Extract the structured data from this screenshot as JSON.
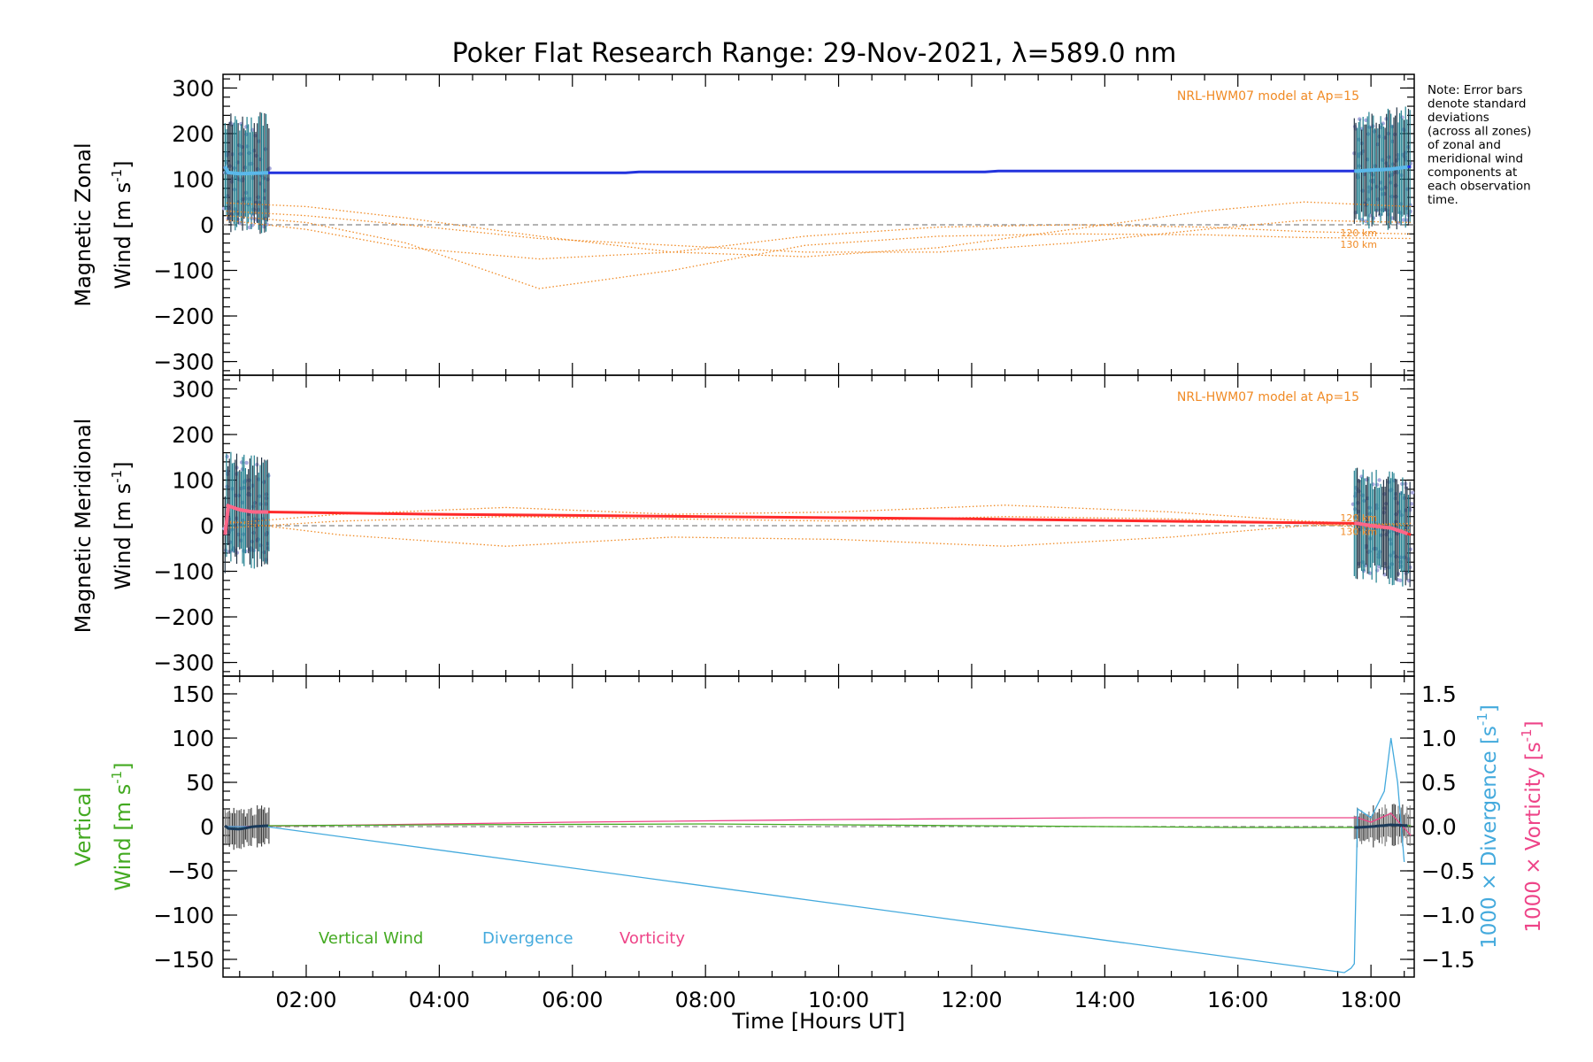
{
  "title": "Poker Flat Research Range: 29-Nov-2021, λ=589.0 nm",
  "note": [
    "Note: Error bars",
    "denote standard",
    "deviations",
    "(across all zones)",
    "of zonal and",
    "meridional wind",
    "components at",
    "each observation",
    "time."
  ],
  "colors": {
    "zonal": "#2233dd",
    "zonal_light": "#5ab8ea",
    "meridional": "#ff2a2a",
    "meridional_light": "#ff6688",
    "model": "#f08a24",
    "spread": "#aaaadd",
    "vertical": "#44aa22",
    "divergence": "#44aadd",
    "vorticity": "#ee4488",
    "errbar": "#223344"
  },
  "chart_data": [
    {
      "type": "line",
      "panel": "zonal",
      "ylabel_line1": "Magnetic Zonal",
      "ylabel_line2": "Wind [m s-1]",
      "ylabel_unit": "[m s",
      "ylabel_exp": "-1",
      "ylabel_close": "]",
      "ylabel_prefix": "Wind ",
      "ylim": [
        -330,
        330
      ],
      "yticks": [
        300,
        200,
        100,
        0,
        -100,
        -200,
        -300
      ],
      "ytick_labels": [
        "300",
        "200",
        "100",
        "0",
        "−100",
        "−200",
        "−300"
      ],
      "model_label": "NRL-HWM07 model at Ap=15",
      "model_alt_labels": [
        "120 km",
        "130 km"
      ],
      "series": [
        {
          "name": "measured",
          "x": [
            0.8,
            1.0,
            1.2,
            1.4,
            4.0,
            6.8,
            7.0,
            12.2,
            12.4,
            17.8,
            18.0,
            18.3,
            18.6
          ],
          "y": [
            115,
            112,
            113,
            114,
            114,
            114,
            116,
            116,
            118,
            118,
            120,
            122,
            128
          ]
        },
        {
          "name": "model_1",
          "x": [
            0.8,
            2.0,
            3.5,
            5.5,
            7.5,
            9.5,
            11.5,
            13.5,
            15.5,
            17.0,
            18.6
          ],
          "y": [
            48,
            40,
            15,
            -25,
            -60,
            -70,
            -50,
            -10,
            30,
            50,
            40
          ]
        },
        {
          "name": "model_2",
          "x": [
            0.8,
            2.0,
            3.5,
            5.5,
            7.5,
            9.5,
            11.5,
            13.5,
            15.5,
            17.0,
            18.6
          ],
          "y": [
            20,
            5,
            -40,
            -140,
            -100,
            -45,
            -25,
            -20,
            -22,
            -28,
            -30
          ]
        },
        {
          "name": "model_3",
          "x": [
            0.8,
            2.0,
            3.5,
            5.5,
            7.5,
            9.5,
            11.5,
            13.5,
            15.5,
            17.0,
            18.6
          ],
          "y": [
            10,
            -10,
            -50,
            -75,
            -60,
            -25,
            -5,
            0,
            -5,
            -15,
            -20
          ]
        },
        {
          "name": "model_4",
          "x": [
            0.8,
            2.0,
            3.5,
            5.5,
            7.5,
            9.5,
            11.5,
            13.5,
            15.5,
            17.0,
            18.6
          ],
          "y": [
            30,
            20,
            0,
            -30,
            -45,
            -60,
            -60,
            -40,
            -10,
            10,
            5
          ]
        }
      ]
    },
    {
      "type": "line",
      "panel": "meridional",
      "ylabel_line1": "Magnetic Meridional",
      "ylabel_line2": "Wind [m s-1]",
      "ylabel_unit": "[m s",
      "ylabel_exp": "-1",
      "ylabel_close": "]",
      "ylabel_prefix": "Wind ",
      "ylim": [
        -330,
        330
      ],
      "yticks": [
        300,
        200,
        100,
        0,
        -100,
        -200,
        -300
      ],
      "ytick_labels": [
        "300",
        "200",
        "100",
        "0",
        "−100",
        "−200",
        "−300"
      ],
      "model_label": "NRL-HWM07 model at Ap=15",
      "model_alt_labels": [
        "120 km",
        "130 km"
      ],
      "series": [
        {
          "name": "measured",
          "x": [
            0.8,
            1.0,
            1.2,
            1.4,
            4.0,
            8.0,
            12.0,
            16.0,
            17.8,
            18.0,
            18.3,
            18.6
          ],
          "y": [
            45,
            35,
            30,
            30,
            25,
            20,
            15,
            8,
            5,
            0,
            -5,
            -20
          ]
        },
        {
          "name": "model_1",
          "x": [
            0.8,
            2.5,
            5.0,
            7.5,
            10.0,
            12.5,
            15.0,
            17.0,
            18.6
          ],
          "y": [
            5,
            25,
            40,
            25,
            30,
            45,
            30,
            10,
            0
          ]
        },
        {
          "name": "model_2",
          "x": [
            0.8,
            2.5,
            5.0,
            7.5,
            10.0,
            12.5,
            15.0,
            17.0,
            18.6
          ],
          "y": [
            10,
            -20,
            -45,
            -25,
            -30,
            -45,
            -25,
            0,
            5
          ]
        },
        {
          "name": "model_3",
          "x": [
            0.8,
            2.5,
            5.0,
            7.5,
            10.0,
            12.5,
            15.0,
            17.0,
            18.6
          ],
          "y": [
            -5,
            10,
            20,
            15,
            10,
            20,
            15,
            5,
            -10
          ]
        }
      ]
    },
    {
      "type": "line",
      "panel": "vertical",
      "ylabel_line1": "Vertical",
      "ylabel_line2": "Wind [m s-1]",
      "ylabel_unit": "[m s",
      "ylabel_exp": "-1",
      "ylabel_close": "]",
      "ylabel_prefix": "Wind ",
      "ylim": [
        -170,
        170
      ],
      "yticks": [
        150,
        100,
        50,
        0,
        -50,
        -100,
        -150
      ],
      "ytick_labels": [
        "150",
        "100",
        "50",
        "0",
        "−50",
        "−100",
        "−150"
      ],
      "y2lim": [
        -1.7,
        1.7
      ],
      "y2ticks": [
        1.5,
        1.0,
        0.5,
        0.0,
        -0.5,
        -1.0,
        -1.5
      ],
      "y2tick_labels": [
        "1.5",
        "1.0",
        "0.5",
        "0.0",
        "−0.5",
        "−1.0",
        "−1.5"
      ],
      "y2label_div": "1000 × Divergence [s",
      "y2label_vor": "1000 × Vorticity [s",
      "y2label_exp": "-1",
      "y2label_close": "]",
      "xlabel": "Time [Hours UT]",
      "xlim": [
        0.75,
        18.65
      ],
      "xticks": [
        2,
        4,
        6,
        8,
        10,
        12,
        14,
        16,
        18
      ],
      "xtick_labels": [
        "02:00",
        "04:00",
        "06:00",
        "08:00",
        "10:00",
        "12:00",
        "14:00",
        "16:00",
        "18:00"
      ],
      "legend": [
        "Vertical Wind",
        "Divergence",
        "Vorticity"
      ],
      "series": [
        {
          "name": "Vertical Wind",
          "x": [
            0.8,
            1.0,
            1.2,
            1.4,
            4.0,
            8.0,
            12.0,
            16.0,
            17.8,
            18.0,
            18.3,
            18.6
          ],
          "y": [
            -2,
            -3,
            0,
            1,
            2,
            3,
            1,
            -1,
            -1,
            0,
            2,
            1
          ]
        },
        {
          "name": "Divergence",
          "x": [
            0.8,
            1.4,
            17.6,
            17.7,
            17.75,
            17.8,
            18.0,
            18.2,
            18.3,
            18.4,
            18.5
          ],
          "y2": [
            0.0,
            0.0,
            -1.65,
            -1.6,
            -1.55,
            0.2,
            0.1,
            0.4,
            1.0,
            0.5,
            -0.4
          ]
        },
        {
          "name": "Vorticity",
          "x": [
            0.8,
            3.0,
            6.0,
            10.0,
            14.0,
            17.8,
            18.0,
            18.3,
            18.6
          ],
          "y2": [
            0.0,
            0.02,
            0.05,
            0.08,
            0.1,
            0.1,
            0.05,
            0.15,
            -0.1
          ]
        }
      ]
    }
  ]
}
